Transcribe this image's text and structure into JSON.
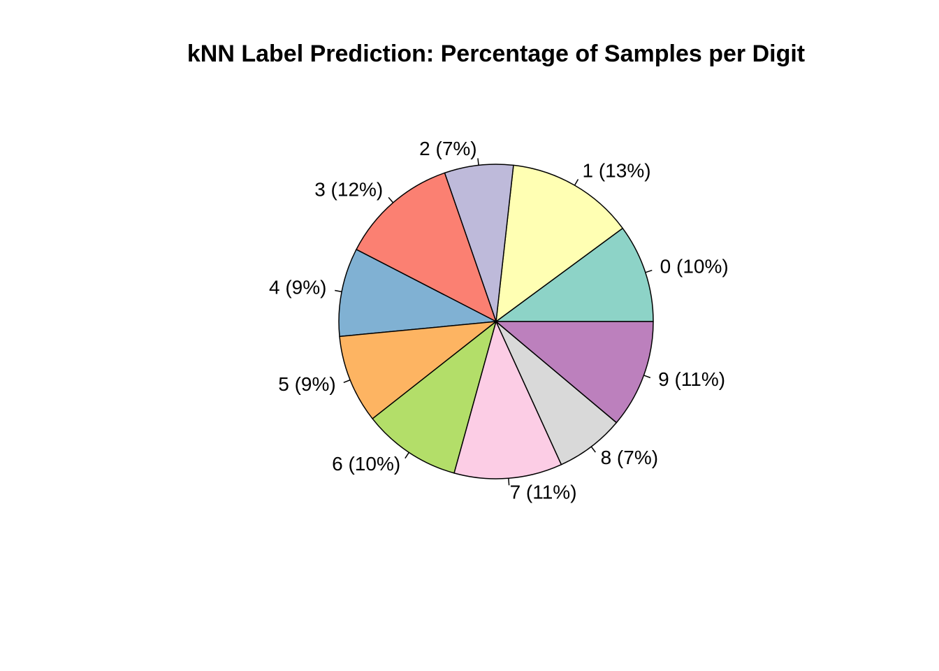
{
  "chart_data": {
    "type": "pie",
    "title": "kNN Label Prediction: Percentage of Samples per Digit",
    "start_angle_deg": 0,
    "direction": "counterclockwise",
    "slices": [
      {
        "label": "0 (10%)",
        "category": "0",
        "value": 10,
        "color": "#8DD3C7"
      },
      {
        "label": "1 (13%)",
        "category": "1",
        "value": 13,
        "color": "#FFFFB3"
      },
      {
        "label": "2 (7%)",
        "category": "2",
        "value": 7,
        "color": "#BEBADA"
      },
      {
        "label": "3 (12%)",
        "category": "3",
        "value": 12,
        "color": "#FB8072"
      },
      {
        "label": "4 (9%)",
        "category": "4",
        "value": 9,
        "color": "#80B1D3"
      },
      {
        "label": "5 (9%)",
        "category": "5",
        "value": 9,
        "color": "#FDB462"
      },
      {
        "label": "6 (10%)",
        "category": "6",
        "value": 10,
        "color": "#B3DE69"
      },
      {
        "label": "7 (11%)",
        "category": "7",
        "value": 11,
        "color": "#FCCDE5"
      },
      {
        "label": "8 (7%)",
        "category": "8",
        "value": 7,
        "color": "#D9D9D9"
      },
      {
        "label": "9 (11%)",
        "category": "9",
        "value": 11,
        "color": "#BC80BD"
      }
    ]
  }
}
